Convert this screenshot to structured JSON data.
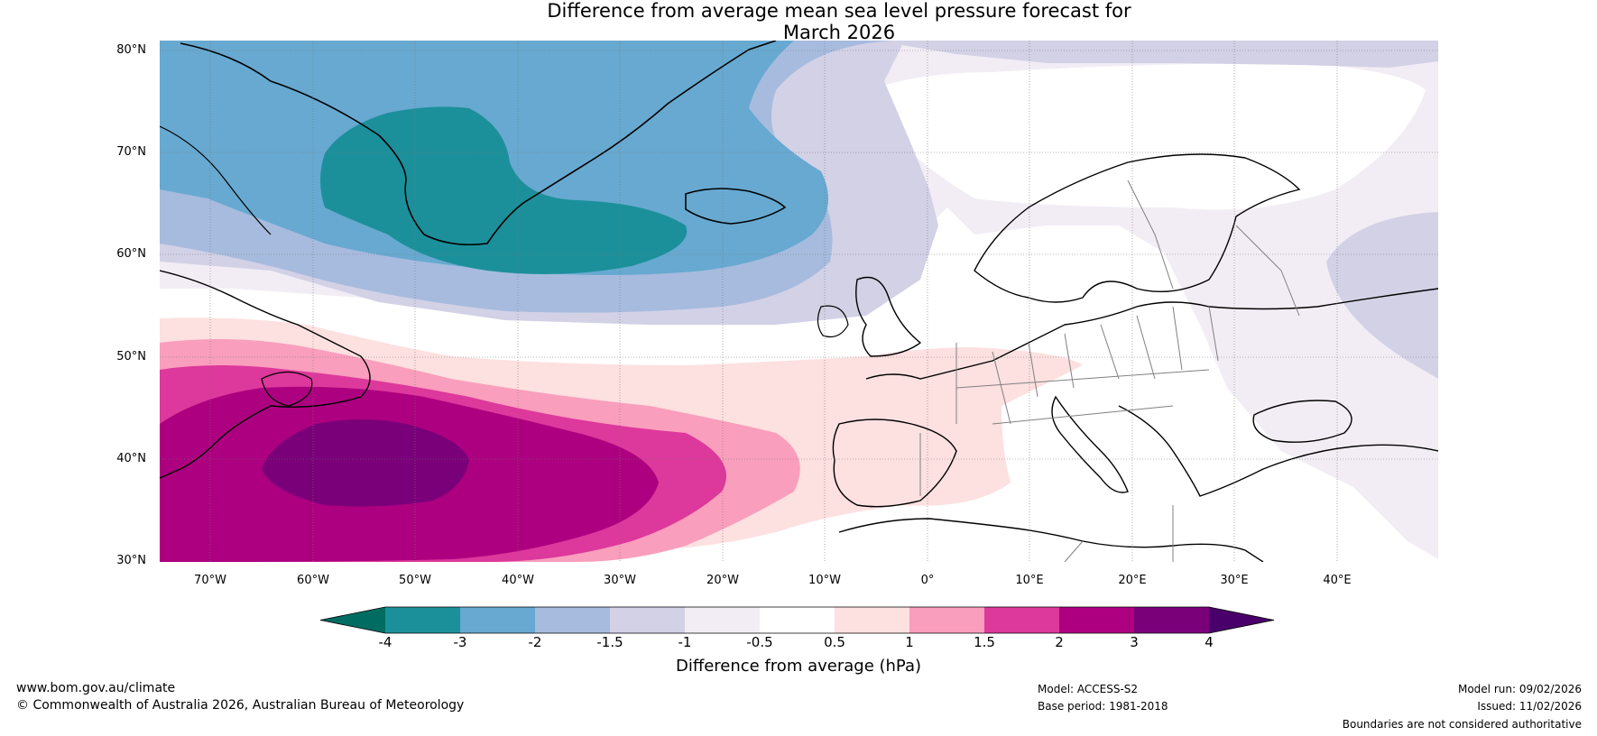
{
  "title": {
    "line1": "Difference from average mean sea level pressure forecast for",
    "line2": "March 2026"
  },
  "map": {
    "latitude_labels": [
      "80°N",
      "70°N",
      "60°N",
      "50°N",
      "40°N",
      "30°N"
    ],
    "longitude_labels": [
      "70°W",
      "60°W",
      "50°W",
      "40°W",
      "30°W",
      "20°W",
      "10°W",
      "0°",
      "10°E",
      "20°E",
      "30°E",
      "40°E"
    ],
    "coastline_color": "#000000",
    "border_color": "#808080"
  },
  "colorbar": {
    "title": "Difference from average (hPa)",
    "bins": [
      {
        "label": "-4",
        "color": "#006c62"
      },
      {
        "label": "-3",
        "color": "#1c909a"
      },
      {
        "label": "-2",
        "color": "#67a9d0"
      },
      {
        "label": "-1.5",
        "color": "#a7bbde"
      },
      {
        "label": "-1",
        "color": "#d2d1e6"
      },
      {
        "label": "-0.5",
        "color": "#f2edf5"
      },
      {
        "label": "0.5",
        "color": "#ffffff"
      },
      {
        "label": "1",
        "color": "#fde0e0"
      },
      {
        "label": "1.5",
        "color": "#f99ebc"
      },
      {
        "label": "2",
        "color": "#dd389b"
      },
      {
        "label": "3",
        "color": "#ad0080"
      },
      {
        "label": "4",
        "color": "#7a0079"
      }
    ],
    "over_color": "#4a006a"
  },
  "footer": {
    "website": "www.bom.gov.au/climate",
    "copyright": "© Commonwealth of Australia 2026, Australian Bureau of Meteorology",
    "model": "Model: ACCESS-S2",
    "base_period": "Base period: 1981-2018",
    "model_run": "Model run: 09/02/2026",
    "issued": "Issued: 11/02/2026",
    "disclaimer": "Boundaries are not considered authoritative"
  }
}
